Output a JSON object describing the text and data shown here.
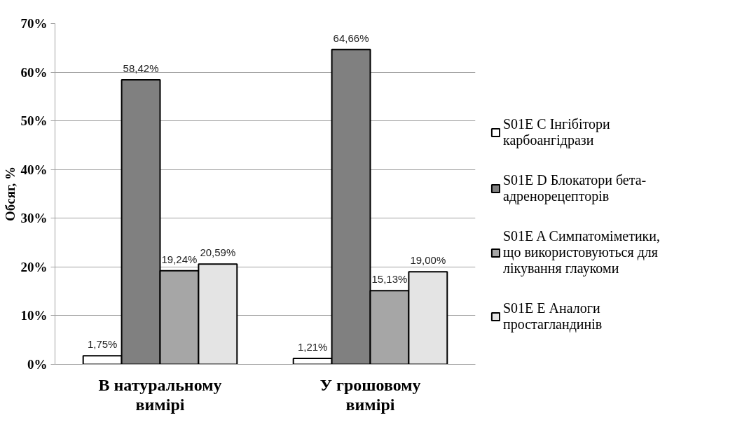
{
  "chart_data": {
    "type": "bar",
    "ylabel": "Обсяг, %",
    "categories": [
      "В натуральному вимірі",
      "У грошовому вимірі"
    ],
    "series": [
      {
        "name": "S01E C Інгібітори карбоангідрази",
        "color": "#ffffff",
        "values": [
          1.75,
          1.21
        ],
        "value_labels": [
          "1,75%",
          "1,21%"
        ]
      },
      {
        "name": "S01E D Блокатори бета-адренорецепторів",
        "color": "#808080",
        "values": [
          58.42,
          64.66
        ],
        "value_labels": [
          "58,42%",
          "64,66%"
        ]
      },
      {
        "name": "S01E A Симпатоміметики, що використовуються для лікування глаукоми",
        "color": "#a6a6a6",
        "values": [
          19.24,
          15.13
        ],
        "value_labels": [
          "19,24%",
          "15,13%"
        ]
      },
      {
        "name": "S01E E Аналоги простагландинів",
        "color": "#e4e4e4",
        "values": [
          20.59,
          19.0
        ],
        "value_labels": [
          "20,59%",
          "19,00%"
        ]
      }
    ],
    "ylim": [
      0,
      70
    ],
    "yticks": [
      {
        "value": 0,
        "label": "0%"
      },
      {
        "value": 10,
        "label": "10%"
      },
      {
        "value": 20,
        "label": "20%"
      },
      {
        "value": 30,
        "label": "30%"
      },
      {
        "value": 40,
        "label": "40%"
      },
      {
        "value": 50,
        "label": "50%"
      },
      {
        "value": 60,
        "label": "60%"
      },
      {
        "value": 70,
        "label": "70%"
      }
    ],
    "grid": "y",
    "legend": "right"
  }
}
